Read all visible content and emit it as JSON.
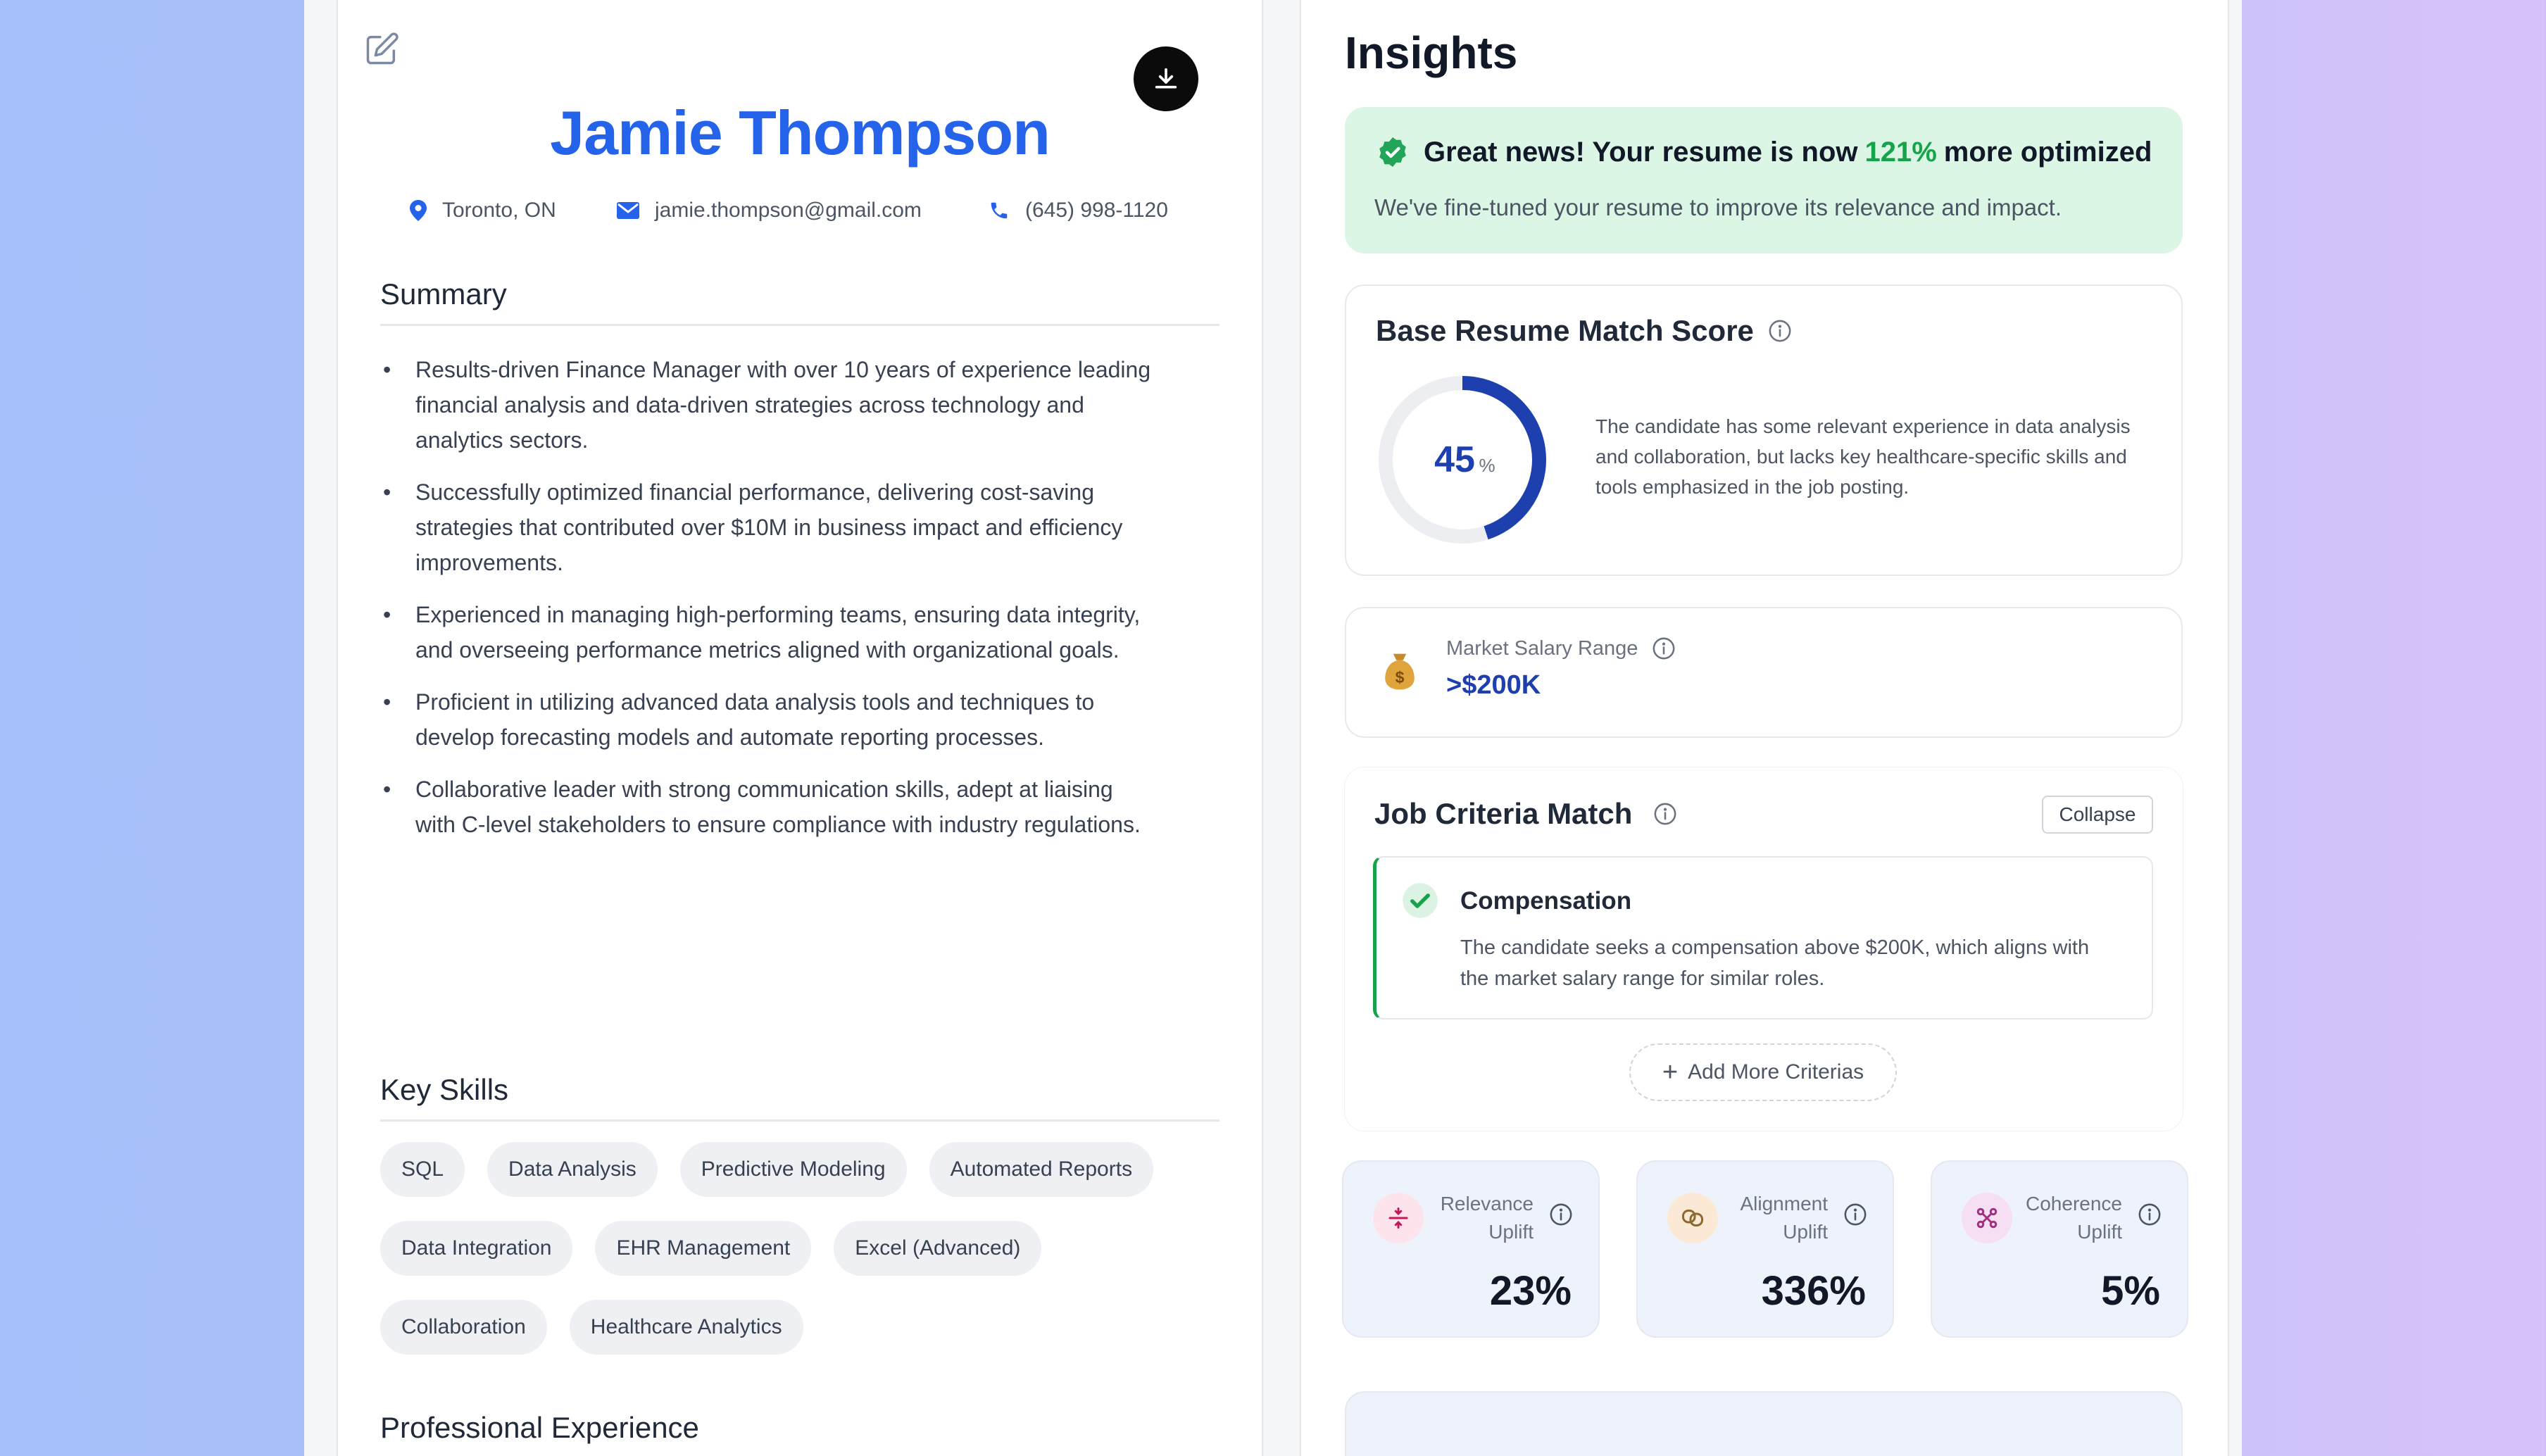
{
  "resume": {
    "name": "Jamie Thompson",
    "contact": {
      "location": "Toronto, ON",
      "email": "jamie.thompson@gmail.com",
      "phone": "(645) 998-1120"
    },
    "summary_title": "Summary",
    "summary": [
      "Results-driven Finance Manager with over 10 years of experience leading financial analysis and data-driven strategies across technology and analytics sectors.",
      "Successfully optimized financial performance, delivering cost-saving strategies that contributed over $10M in business impact and efficiency improvements.",
      "Experienced in managing high-performing teams, ensuring data integrity, and overseeing performance metrics aligned with organizational goals.",
      "Proficient in utilizing advanced data analysis tools and techniques to develop forecasting models and automate reporting processes.",
      "Collaborative leader with strong communication skills, adept at liaising with C-level stakeholders to ensure compliance with industry regulations."
    ],
    "skills_title": "Key Skills",
    "skills": [
      [
        "SQL",
        "Data Analysis",
        "Predictive Modeling",
        "Automated Reports"
      ],
      [
        "Data Integration",
        "EHR Management",
        "Excel (Advanced)"
      ],
      [
        "Collaboration",
        "Healthcare Analytics"
      ]
    ],
    "experience_title": "Professional Experience"
  },
  "insights": {
    "title": "Insights",
    "banner": {
      "head_pre": "Great news! Your resume is now",
      "head_pct": "121%",
      "head_post": "more optimized",
      "sub": "We've fine-tuned your resume to improve its relevance and impact."
    },
    "score": {
      "title": "Base Resume Match Score",
      "value": "45",
      "unit": "%",
      "fraction": 0.45,
      "desc": "The candidate has some relevant experience in data analysis and collaboration, but lacks key healthcare-specific skills and tools emphasized in the job posting."
    },
    "salary": {
      "label": "Market Salary Range",
      "value": ">$200K"
    },
    "criteria": {
      "title": "Job Criteria Match",
      "collapse_label": "Collapse",
      "item_title": "Compensation",
      "item_desc": "The candidate seeks a compensation above $200K, which aligns with the market salary range for similar roles.",
      "add_label": "Add More Criterias"
    },
    "metrics": [
      {
        "label": "Relevance Uplift",
        "value": "23%",
        "icon": "relevance-icon",
        "bg": "#fde4ec",
        "fg": "#c2185b"
      },
      {
        "label": "Alignment Uplift",
        "value": "336%",
        "icon": "alignment-icon",
        "bg": "#fbe9d6",
        "fg": "#8b6a2b"
      },
      {
        "label": "Coherence Uplift",
        "value": "5%",
        "icon": "coherence-icon",
        "bg": "#f6dff3",
        "fg": "#a0307f"
      }
    ]
  },
  "colors": {
    "accent": "#2563eb",
    "success": "#16a34a",
    "score_ring": "#1e40af"
  }
}
